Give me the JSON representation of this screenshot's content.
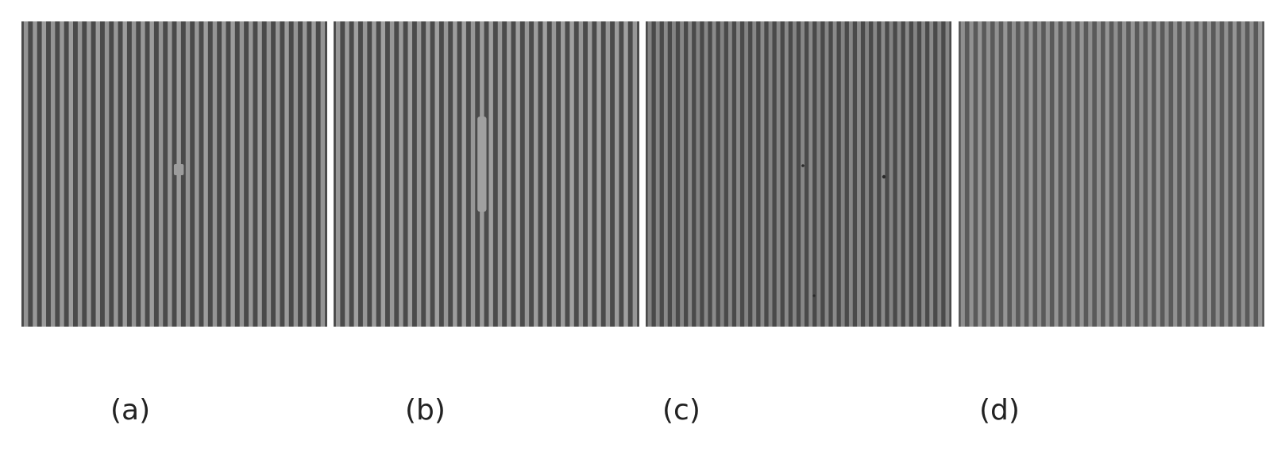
{
  "panels": [
    {
      "id": "a",
      "label": "(a)",
      "background": "#4a4a4a",
      "line_color": "#9c9c9c",
      "line_count": 34,
      "defect": "short-bridge"
    },
    {
      "id": "b",
      "label": "(b)",
      "background": "#4b4b4b",
      "line_color": "#a0a0a0",
      "line_count": 34,
      "defect": "long-bridge"
    },
    {
      "id": "c",
      "label": "(c)",
      "background": "#4a4a4a",
      "line_color": "#8a8a8a",
      "line_count": 38,
      "defect": "particles"
    },
    {
      "id": "d",
      "label": "(d)",
      "background": "#5a5a5a",
      "line_color": "#959595",
      "line_count": 36,
      "defect": "none"
    }
  ]
}
